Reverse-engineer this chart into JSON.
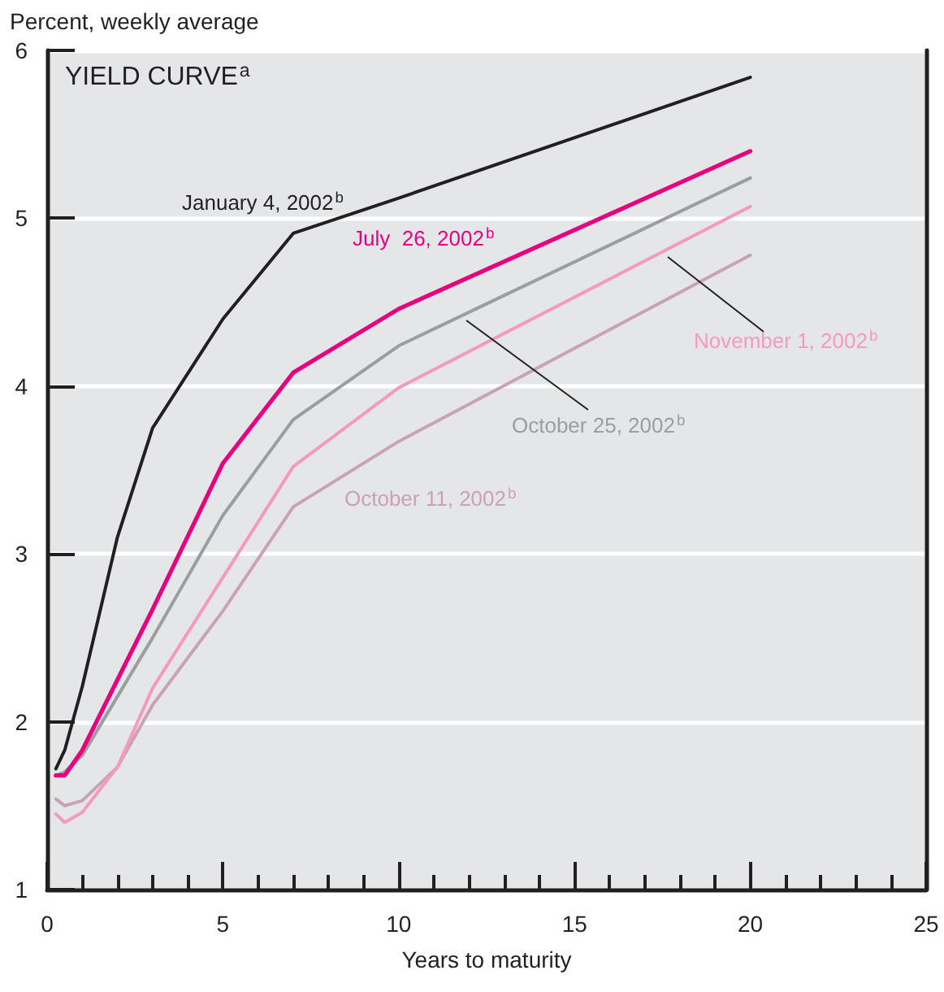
{
  "chart_data": {
    "type": "line",
    "title": "YIELD CURVE$^{a}$",
    "ylabel": "Percent, weekly average",
    "xlabel": "Years to maturity",
    "x": [
      0.25,
      0.5,
      1,
      2,
      3,
      5,
      7,
      10,
      20
    ],
    "series": [
      {
        "name": "January 4, 2002$^{b}$",
        "color": "#231f20",
        "values": [
          1.72,
          1.83,
          2.21,
          3.1,
          3.75,
          4.4,
          4.91,
          5.12,
          5.84
        ]
      },
      {
        "name": "July  26, 2002$^{b}$",
        "color": "#e6007e",
        "values": [
          1.68,
          1.68,
          1.83,
          2.25,
          2.67,
          3.54,
          4.08,
          4.46,
          5.4
        ]
      },
      {
        "name": "October 25, 2002$^{b}$",
        "color": "#9d9d9f",
        "values": [
          1.68,
          1.7,
          1.8,
          2.15,
          2.5,
          3.23,
          3.8,
          4.24,
          5.24
        ]
      },
      {
        "name": "November 1, 2002$^{b}$",
        "color": "#f49ac1",
        "values": [
          1.45,
          1.4,
          1.46,
          1.73,
          2.2,
          2.86,
          3.52,
          3.99,
          5.07
        ]
      },
      {
        "name": "October 11, 2002$^{b}$",
        "color": "#c9a3b3",
        "values": [
          1.54,
          1.5,
          1.53,
          1.73,
          2.1,
          2.66,
          3.28,
          3.67,
          4.78
        ]
      }
    ],
    "xlim": [
      0,
      25
    ],
    "xticks": [
      0,
      5,
      10,
      15,
      20,
      25
    ],
    "ylim": [
      1,
      6
    ],
    "yticks": [
      1,
      2,
      3,
      4,
      5,
      6
    ],
    "grid": "y",
    "legend": false,
    "marker": "none",
    "line_style": "solid"
  }
}
